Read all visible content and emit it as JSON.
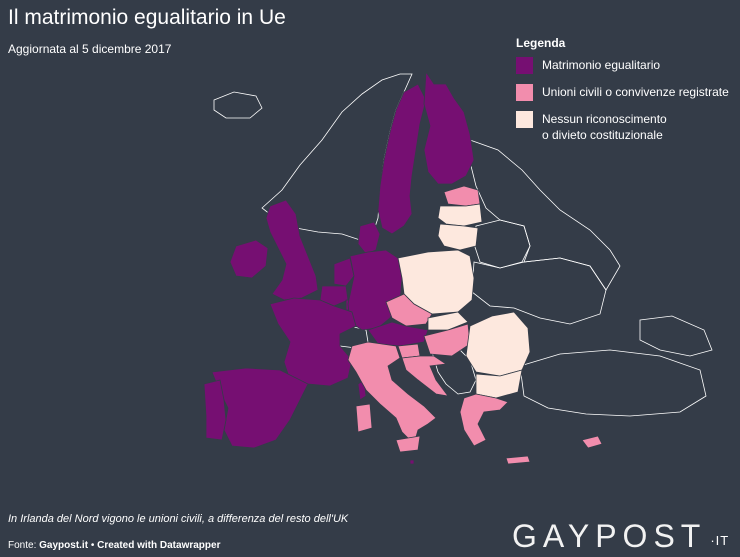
{
  "title": "Il matrimonio egualitario in Ue",
  "subtitle": "Aggiornata al 5 dicembre 2017",
  "legend": {
    "title": "Legenda",
    "items": [
      {
        "label": "Matrimonio egualitario",
        "color": "#760f72"
      },
      {
        "label": "Unioni civili o convivenze registrate",
        "color": "#f28dad"
      },
      {
        "label": "Nessun riconoscimento\no divieto costituzionale",
        "color": "#fde8de"
      }
    ]
  },
  "map_data": {
    "categories": {
      "matrimonio": [
        "Regno Unito",
        "Irlanda",
        "Portogallo",
        "Spagna",
        "Francia",
        "Belgio",
        "Paesi Bassi",
        "Lussemburgo",
        "Germania",
        "Danimarca",
        "Svezia",
        "Finlandia",
        "Austria",
        "Malta"
      ],
      "unioni": [
        "Italia",
        "Grecia",
        "Cipro",
        "Croazia",
        "Slovenia",
        "Ungheria",
        "Repubblica Ceca",
        "Estonia"
      ],
      "nessuno": [
        "Polonia",
        "Slovacchia",
        "Lituania",
        "Lettonia",
        "Romania",
        "Bulgaria"
      ]
    }
  },
  "note": "In Irlanda del Nord vigono le unioni civili, a differenza del resto dell'UK",
  "footer": {
    "prefix": "Fonte: ",
    "source": "Gaypost.it",
    "sep": " • ",
    "credit": "Created with Datawrapper"
  },
  "logo": {
    "text": "GAYPOST",
    "suffix": "·IT"
  }
}
